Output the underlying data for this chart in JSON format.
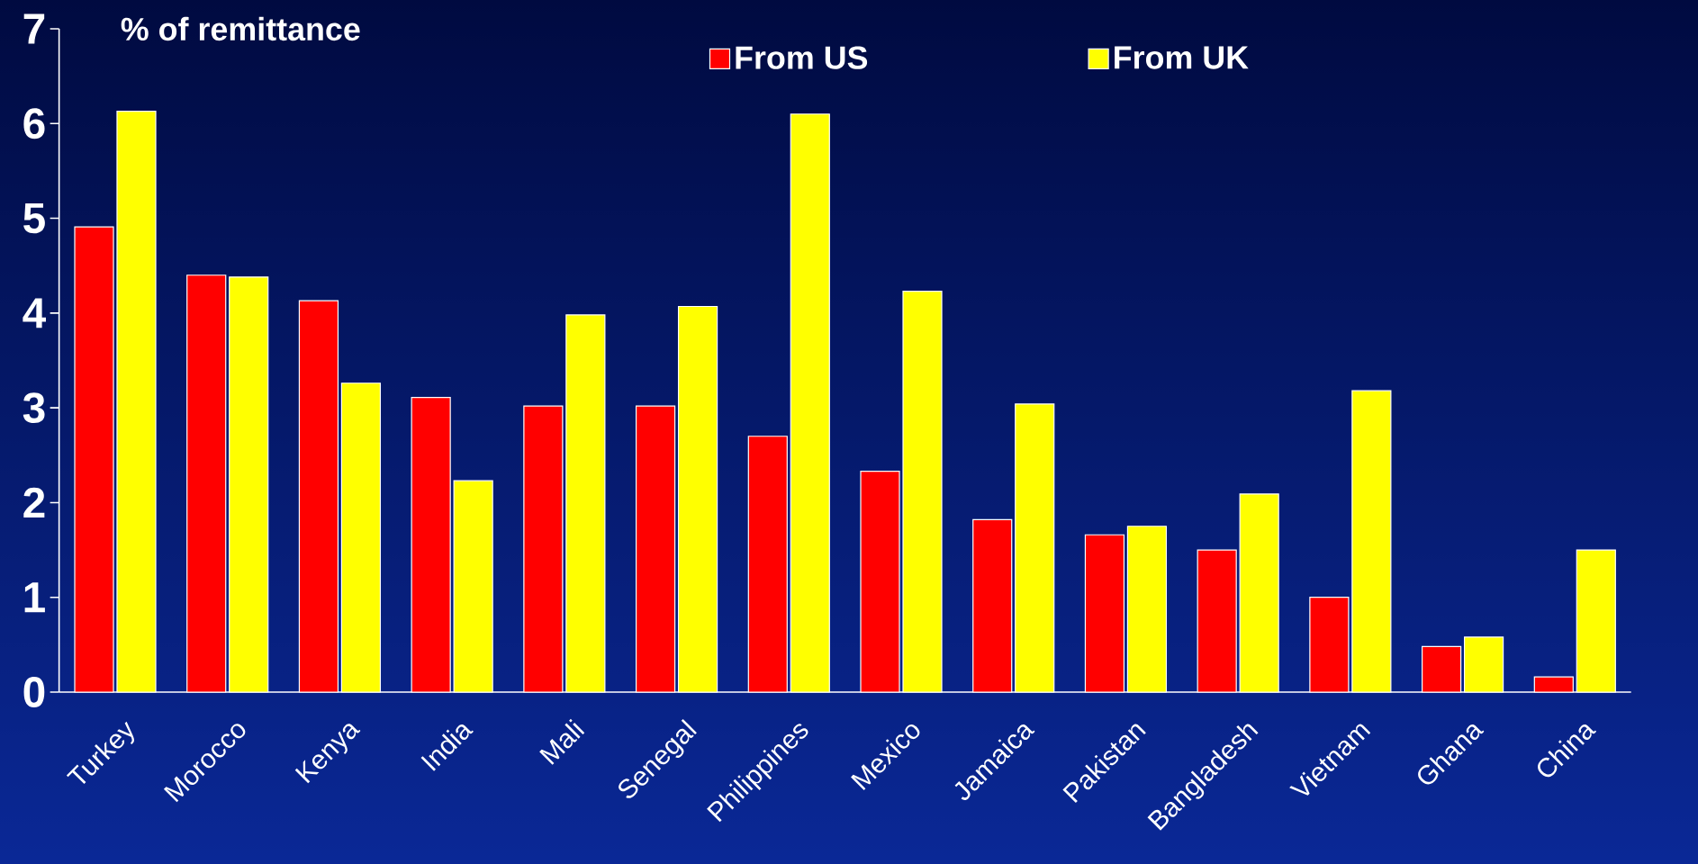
{
  "chart_data": {
    "type": "bar",
    "ylabel": "% of remittance",
    "categories": [
      "Turkey",
      "Morocco",
      "Kenya",
      "India",
      "Mali",
      "Senegal",
      "Philippines",
      "Mexico",
      "Jamaica",
      "Pakistan",
      "Bangladesh",
      "Vietnam",
      "Ghana",
      "China"
    ],
    "series": [
      {
        "name": "From US",
        "color": "#ff0000",
        "values": [
          4.91,
          4.4,
          4.13,
          3.11,
          3.02,
          3.02,
          2.7,
          2.33,
          1.82,
          1.66,
          1.5,
          1.0,
          0.48,
          0.16
        ]
      },
      {
        "name": "From UK",
        "color": "#ffff00",
        "values": [
          6.13,
          4.38,
          3.26,
          2.23,
          3.98,
          4.07,
          6.1,
          4.23,
          3.04,
          1.75,
          2.09,
          3.18,
          0.58,
          1.5
        ]
      }
    ],
    "ylim": [
      0,
      7
    ],
    "yticks": [
      0,
      1,
      2,
      3,
      4,
      5,
      6,
      7
    ],
    "grid": false,
    "legend": "top"
  }
}
